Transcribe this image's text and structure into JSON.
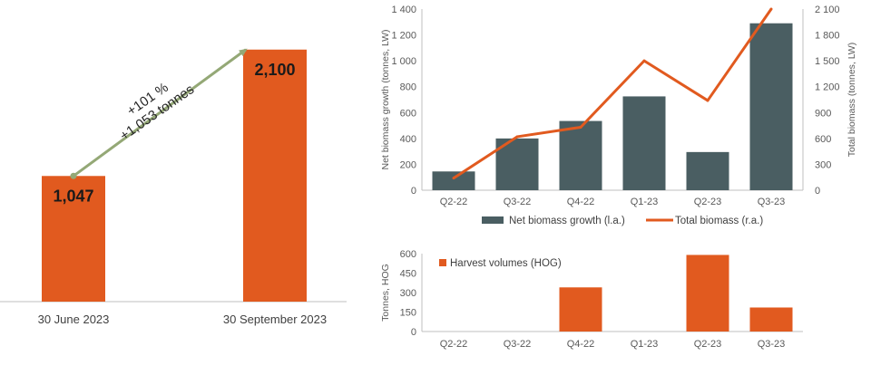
{
  "colors": {
    "orange": "#E15A1F",
    "slate": "#4A5E62",
    "arrow": "#94A876",
    "axis": "#BFBFBF",
    "text": "#404040"
  },
  "chart_data": [
    {
      "id": "total_biomass_comparison",
      "type": "bar",
      "categories": [
        "30 June 2023",
        "30 September 2023"
      ],
      "values": [
        1047,
        2100
      ],
      "value_labels": [
        "1,047",
        "2,100"
      ],
      "ylim": [
        0,
        2400
      ],
      "annotation": {
        "line1": "+101 %",
        "line2": "+1,053 tonnes"
      }
    },
    {
      "id": "biomass_growth",
      "type": "bar-line",
      "categories": [
        "Q2-22",
        "Q3-22",
        "Q4-22",
        "Q1-23",
        "Q2-23",
        "Q3-23"
      ],
      "series": [
        {
          "name": "Net biomass growth (l.a.)",
          "type": "bar",
          "axis": "left",
          "values": [
            145,
            400,
            535,
            725,
            295,
            1290
          ]
        },
        {
          "name": "Total biomass (r.a.)",
          "type": "line",
          "axis": "right",
          "values": [
            140,
            620,
            730,
            1500,
            1040,
            2100
          ]
        }
      ],
      "ylabel_left": "Net biomass growth (tonnes, LW)",
      "ylabel_right": "Total biomass (tonnes, LW)",
      "ylim_left": [
        0,
        1400
      ],
      "ylim_right": [
        0,
        2100
      ],
      "yticks_left": [
        "0",
        "200",
        "400",
        "600",
        "800",
        "1 000",
        "1 200",
        "1 400"
      ],
      "yticks_right": [
        "0",
        "300",
        "600",
        "900",
        "1 200",
        "1 500",
        "1 800",
        "2 100"
      ],
      "legend_position": "bottom"
    },
    {
      "id": "harvest_volumes",
      "type": "bar",
      "categories": [
        "Q2-22",
        "Q3-22",
        "Q4-22",
        "Q1-23",
        "Q2-23",
        "Q3-23"
      ],
      "series": [
        {
          "name": "Harvest volumes (HOG)",
          "values": [
            0,
            0,
            340,
            0,
            590,
            185
          ]
        }
      ],
      "ylabel": "Tonnes, HOG",
      "ylim": [
        0,
        600
      ],
      "yticks": [
        "0",
        "150",
        "300",
        "450",
        "600"
      ],
      "legend_position": "top-left"
    }
  ]
}
